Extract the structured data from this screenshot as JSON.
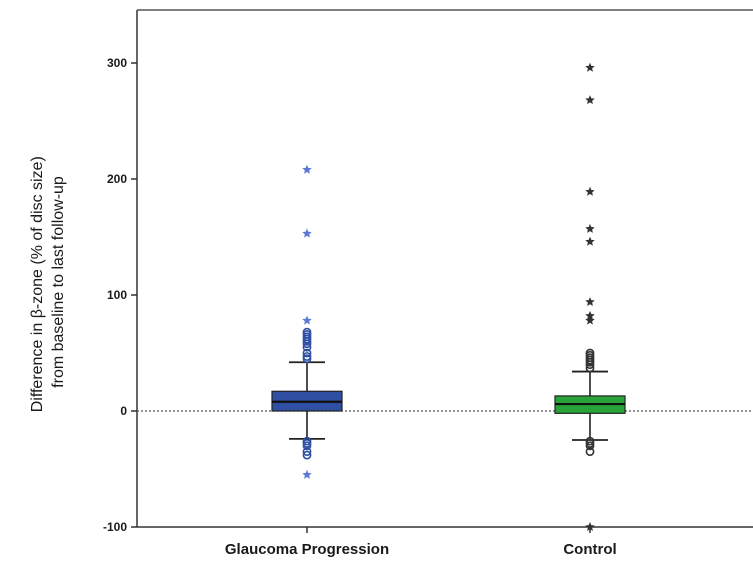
{
  "chart_data": {
    "type": "box",
    "ylabel_lines": [
      "Difference in β-zone (% of disc size)",
      "from baseline to last follow-up"
    ],
    "xlabel": "",
    "ylim": [
      -100,
      350
    ],
    "yticks": [
      -100,
      0,
      100,
      200,
      300
    ],
    "ytick_labels": [
      "-100",
      "0",
      "100",
      "200",
      "300"
    ],
    "reference_line": 0,
    "categories": [
      "Glaucoma Progression",
      "Control"
    ],
    "series": [
      {
        "category": "Glaucoma Progression",
        "color": "#2f4fa3",
        "q1": 0,
        "median": 8,
        "q3": 17,
        "whisker_low": -24,
        "whisker_high": 42,
        "outliers_circle": [
          45,
          47,
          50,
          55,
          58,
          60,
          62,
          64,
          66,
          68,
          -26,
          -28,
          -30,
          -35,
          -38
        ],
        "extremes_star": [
          -55,
          78,
          153,
          208
        ]
      },
      {
        "category": "Control",
        "color": "#27a33a",
        "q1": -2,
        "median": 6,
        "q3": 13,
        "whisker_low": -25,
        "whisker_high": 34,
        "outliers_circle": [
          37,
          40,
          42,
          44,
          46,
          48,
          50,
          -26,
          -28,
          -30,
          -35
        ],
        "extremes_star": [
          -100,
          78,
          82,
          94,
          146,
          157,
          189,
          268,
          296
        ]
      }
    ]
  }
}
